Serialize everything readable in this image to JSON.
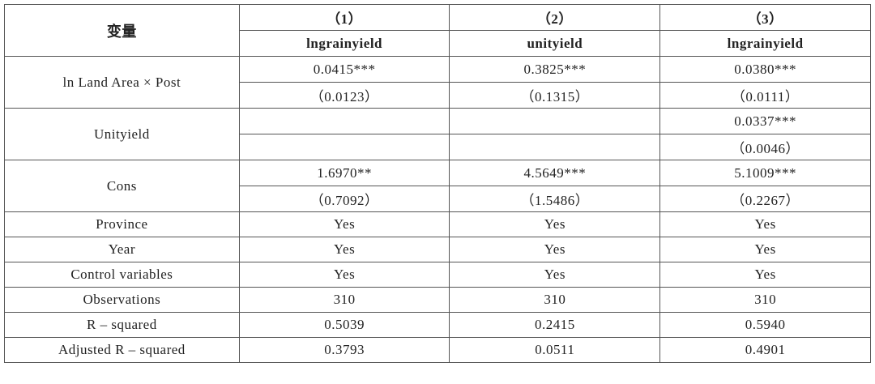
{
  "header": {
    "variable_label": "变量",
    "col_numbers": [
      "（1）",
      "（2）",
      "（3）"
    ],
    "col_depvars": [
      "lngrainyield",
      "unityield",
      "lngrainyield"
    ]
  },
  "rows": {
    "ln_land_area_post": {
      "label": "ln Land Area × Post",
      "coef": [
        "0.0415***",
        "0.3825***",
        "0.0380***"
      ],
      "se": [
        "（0.0123）",
        "（0.1315）",
        "（0.0111）"
      ]
    },
    "unityield": {
      "label": "Unityield",
      "coef": [
        "",
        "",
        "0.0337***"
      ],
      "se": [
        "",
        "",
        "（0.0046）"
      ]
    },
    "cons": {
      "label": "Cons",
      "coef": [
        "1.6970**",
        "4.5649***",
        "5.1009***"
      ],
      "se": [
        "（0.7092）",
        "（1.5486）",
        "（0.2267）"
      ]
    },
    "province": {
      "label": "Province",
      "values": [
        "Yes",
        "Yes",
        "Yes"
      ]
    },
    "year": {
      "label": "Year",
      "values": [
        "Yes",
        "Yes",
        "Yes"
      ]
    },
    "control_variables": {
      "label": "Control variables",
      "values": [
        "Yes",
        "Yes",
        "Yes"
      ]
    },
    "observations": {
      "label": "Observations",
      "values": [
        "310",
        "310",
        "310"
      ]
    },
    "r_squared": {
      "label": "R – squared",
      "values": [
        "0.5039",
        "0.2415",
        "0.5940"
      ]
    },
    "adj_r_squared": {
      "label": "Adjusted R – squared",
      "values": [
        "0.3793",
        "0.0511",
        "0.4901"
      ]
    }
  }
}
